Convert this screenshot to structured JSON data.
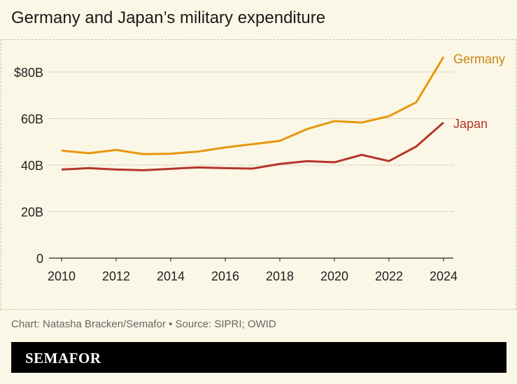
{
  "title": "Germany and Japan’s military expenditure",
  "credit": "Chart: Natasha Bracken/Semafor • Source: SIPRI; OWID",
  "brand": "SEMAFOR",
  "chart_data": {
    "type": "line",
    "title": "Germany and Japan’s military expenditure",
    "x": [
      2010,
      2011,
      2012,
      2013,
      2014,
      2015,
      2016,
      2017,
      2018,
      2019,
      2020,
      2021,
      2022,
      2023,
      2024
    ],
    "series": [
      {
        "name": "Germany",
        "color": "#e8960f",
        "label_color": "#c98414",
        "values": [
          46.2,
          45.1,
          46.5,
          44.7,
          44.9,
          45.8,
          47.6,
          49.0,
          50.4,
          55.5,
          58.9,
          58.3,
          61.0,
          67.0,
          86.5
        ]
      },
      {
        "name": "Japan",
        "color": "#b5342a",
        "label_color": "#b5342a",
        "values": [
          38.1,
          38.7,
          38.1,
          37.8,
          38.4,
          39.0,
          38.7,
          38.5,
          40.5,
          41.7,
          41.2,
          44.4,
          41.7,
          48.0,
          58.3
        ]
      }
    ],
    "ylim": [
      0,
      90
    ],
    "xlim": [
      2010,
      2024
    ],
    "yticks": [
      0,
      20,
      40,
      60,
      80
    ],
    "ytick_labels": [
      "0",
      "20B",
      "40B",
      "60B",
      "$80B"
    ],
    "xticks": [
      2010,
      2012,
      2014,
      2016,
      2018,
      2020,
      2022,
      2024
    ],
    "xtick_labels": [
      "2010",
      "2012",
      "2014",
      "2016",
      "2018",
      "2020",
      "2022",
      "2024"
    ],
    "grid": "horizontal dotted",
    "legend": "direct labels at line ends"
  }
}
